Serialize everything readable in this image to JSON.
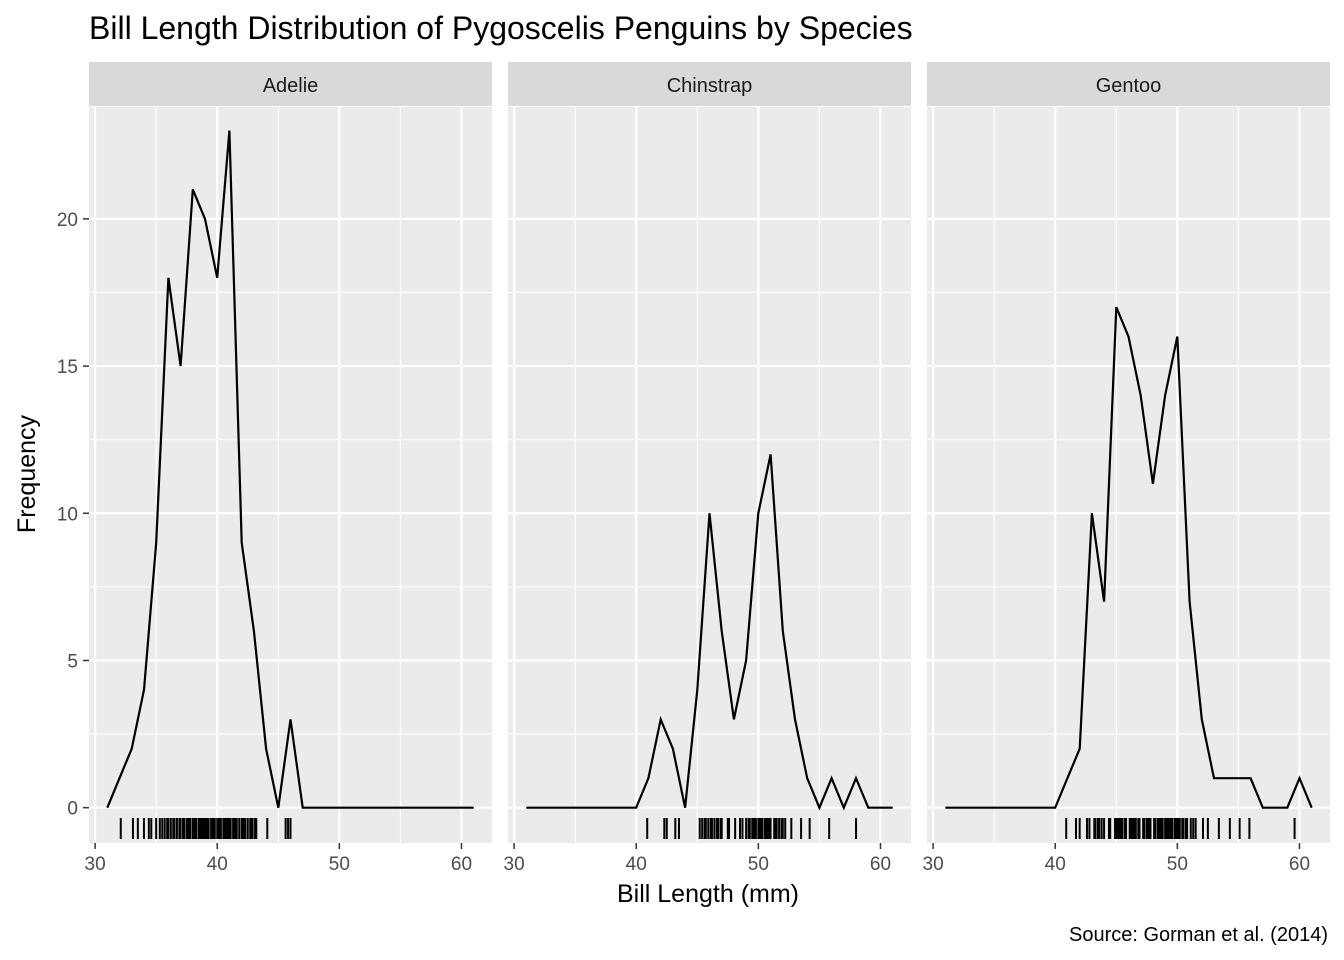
{
  "chart_data": {
    "type": "line",
    "title": "Bill Length Distribution of Pygoscelis Penguins by Species",
    "xlabel": "Bill Length (mm)",
    "ylabel": "Frequency",
    "caption": "Source: Gorman et al. (2014)",
    "xlim": [
      29.5,
      62.5
    ],
    "ylim": [
      -1.2,
      23.8
    ],
    "x_ticks": [
      30,
      40,
      50,
      60
    ],
    "y_ticks": [
      0,
      5,
      10,
      15,
      20
    ],
    "grid": true,
    "facets": [
      {
        "name": "Adelie",
        "x": [
          31,
          32,
          33,
          34,
          35,
          36,
          37,
          38,
          39,
          40,
          41,
          42,
          43,
          44,
          45,
          46,
          47,
          48,
          49,
          50,
          51,
          52,
          53,
          54,
          55,
          56,
          57,
          58,
          59,
          60,
          61
        ],
        "y": [
          0,
          1,
          2,
          4,
          9,
          18,
          15,
          21,
          20,
          18,
          23,
          9,
          6,
          2,
          0,
          3,
          0,
          0,
          0,
          0,
          0,
          0,
          0,
          0,
          0,
          0,
          0,
          0,
          0,
          0,
          0
        ],
        "rug": [
          32.1,
          33.1,
          33.5,
          34.0,
          34.4,
          34.6,
          35.0,
          35.3,
          35.5,
          35.7,
          35.9,
          36.0,
          36.2,
          36.4,
          36.5,
          36.7,
          36.9,
          37.0,
          37.2,
          37.3,
          37.5,
          37.6,
          37.7,
          37.8,
          38.0,
          38.1,
          38.2,
          38.3,
          38.5,
          38.6,
          38.7,
          38.8,
          38.9,
          39.0,
          39.1,
          39.2,
          39.3,
          39.5,
          39.6,
          39.7,
          39.8,
          40.0,
          40.1,
          40.2,
          40.3,
          40.5,
          40.6,
          40.7,
          40.8,
          40.9,
          41.0,
          41.1,
          41.3,
          41.4,
          41.5,
          41.6,
          41.8,
          42.0,
          42.1,
          42.2,
          42.3,
          42.5,
          42.7,
          42.8,
          42.9,
          43.1,
          43.2,
          44.1,
          45.6,
          45.8,
          46.0
        ]
      },
      {
        "name": "Chinstrap",
        "x": [
          31,
          32,
          33,
          34,
          35,
          36,
          37,
          38,
          39,
          40,
          41,
          42,
          43,
          44,
          45,
          46,
          47,
          48,
          49,
          50,
          51,
          52,
          53,
          54,
          55,
          56,
          57,
          58,
          59,
          60,
          61
        ],
        "y": [
          0,
          0,
          0,
          0,
          0,
          0,
          0,
          0,
          0,
          0,
          1,
          3,
          2,
          0,
          4,
          10,
          6,
          3,
          5,
          10,
          12,
          6,
          3,
          1,
          0,
          1,
          0,
          1,
          0,
          0,
          0
        ],
        "rug": [
          40.9,
          42.3,
          42.5,
          43.2,
          43.5,
          45.2,
          45.4,
          45.6,
          45.7,
          45.9,
          46.1,
          46.2,
          46.4,
          46.6,
          46.7,
          46.9,
          47.0,
          47.5,
          47.6,
          48.1,
          48.5,
          48.7,
          49.0,
          49.2,
          49.3,
          49.5,
          49.6,
          49.7,
          49.8,
          50.0,
          50.1,
          50.2,
          50.3,
          50.5,
          50.6,
          50.7,
          50.8,
          50.9,
          51.0,
          51.3,
          51.4,
          51.5,
          51.7,
          51.9,
          52.0,
          52.2,
          52.7,
          53.5,
          54.2,
          55.8,
          58.0
        ]
      },
      {
        "name": "Gentoo",
        "x": [
          31,
          32,
          33,
          34,
          35,
          36,
          37,
          38,
          39,
          40,
          41,
          42,
          43,
          44,
          45,
          46,
          47,
          48,
          49,
          50,
          51,
          52,
          53,
          54,
          55,
          56,
          57,
          58,
          59,
          60,
          61
        ],
        "y": [
          0,
          0,
          0,
          0,
          0,
          0,
          0,
          0,
          0,
          0,
          1,
          2,
          10,
          7,
          17,
          16,
          14,
          11,
          14,
          16,
          7,
          3,
          1,
          1,
          1,
          1,
          0,
          0,
          0,
          1,
          0
        ],
        "rug": [
          40.9,
          41.7,
          42.0,
          42.6,
          42.8,
          43.2,
          43.3,
          43.5,
          43.6,
          43.8,
          44.0,
          44.4,
          44.5,
          44.9,
          45.0,
          45.1,
          45.2,
          45.3,
          45.4,
          45.5,
          45.7,
          45.8,
          46.1,
          46.2,
          46.3,
          46.4,
          46.5,
          46.6,
          46.8,
          46.9,
          47.2,
          47.3,
          47.5,
          47.6,
          47.7,
          47.8,
          48.1,
          48.2,
          48.4,
          48.5,
          48.6,
          48.7,
          48.8,
          49.0,
          49.1,
          49.2,
          49.3,
          49.4,
          49.5,
          49.6,
          49.8,
          49.9,
          50.0,
          50.1,
          50.2,
          50.4,
          50.5,
          50.7,
          50.8,
          51.1,
          51.3,
          51.5,
          52.1,
          52.5,
          53.4,
          54.3,
          55.1,
          55.9,
          59.6
        ]
      }
    ]
  }
}
